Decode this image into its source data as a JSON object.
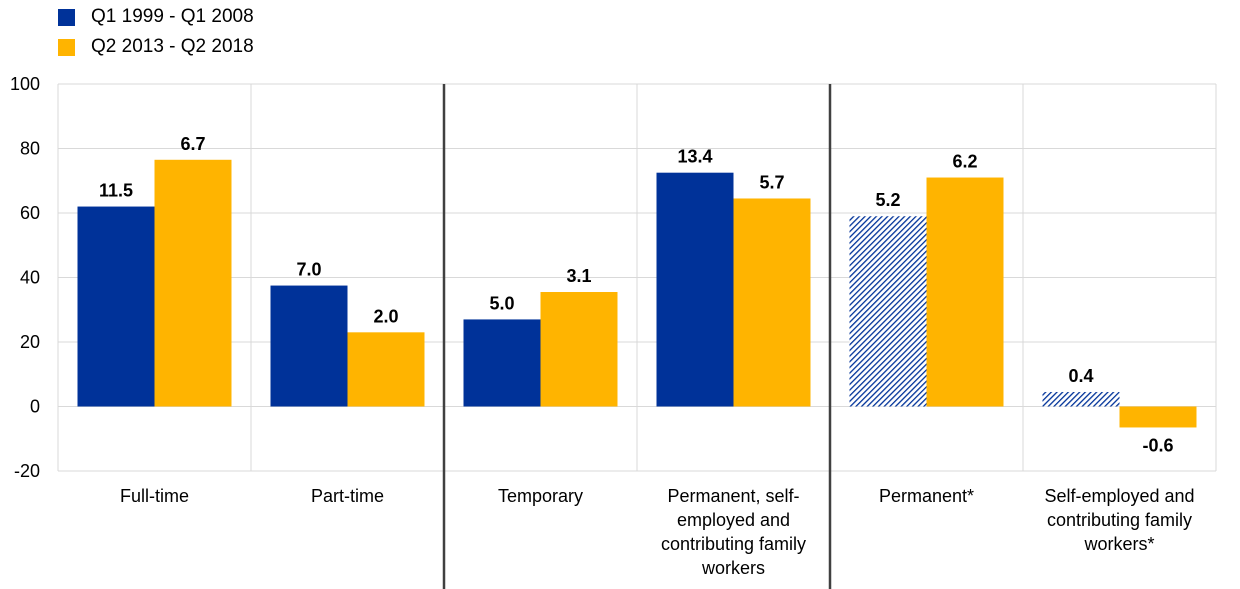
{
  "chart_data": {
    "type": "bar",
    "categories": [
      [
        "Full-time"
      ],
      [
        "Part-time"
      ],
      [
        "Temporary"
      ],
      [
        "Permanent, self-",
        "employed and",
        "contributing family",
        "workers"
      ],
      [
        "Permanent*"
      ],
      [
        "Self-employed and",
        "contributing family",
        "workers*"
      ]
    ],
    "series": [
      {
        "name": "Q1 1999 - Q1 2008",
        "color": "#003299",
        "values": [
          62,
          37.5,
          27,
          72.5,
          59,
          4.5
        ],
        "labels": [
          "11.5",
          "7.0",
          "5.0",
          "13.4",
          "5.2",
          "0.4"
        ],
        "hatched": [
          false,
          false,
          false,
          false,
          true,
          true
        ]
      },
      {
        "name": "Q2 2013 - Q2 2018",
        "color": "#FFB400",
        "values": [
          76.5,
          23,
          35.5,
          64.5,
          71,
          -6.5
        ],
        "labels": [
          "6.7",
          "2.0",
          "3.1",
          "5.7",
          "6.2",
          "-0.6"
        ],
        "hatched": [
          false,
          false,
          false,
          false,
          false,
          false
        ]
      }
    ],
    "ylim": [
      -20,
      100
    ],
    "yticks": [
      "100",
      "80",
      "60",
      "40",
      "20",
      "0",
      "-20"
    ],
    "ytick_values": [
      100,
      80,
      60,
      40,
      20,
      0,
      -20
    ],
    "group_separators_after": [
      2,
      4
    ],
    "grid": true,
    "legend_position": "top-left",
    "title": "",
    "xlabel": "",
    "ylabel": ""
  }
}
